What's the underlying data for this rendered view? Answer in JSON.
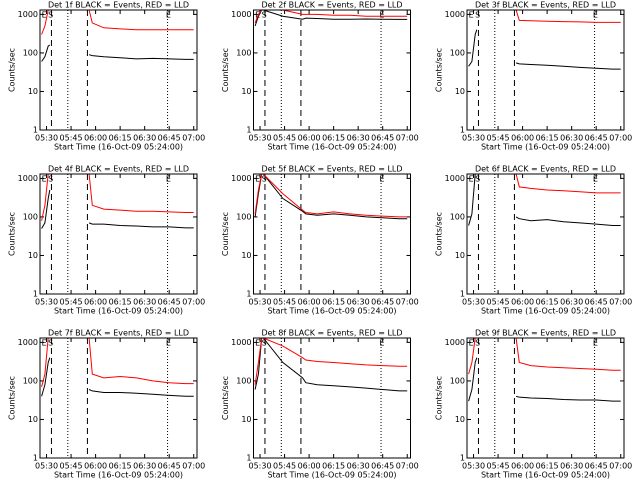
{
  "chart_data": [
    {
      "type": "line",
      "title": "Det 1f BLACK = Events, RED = LLD",
      "xlabel": "Start Time (16-Oct-09 05:24:00)",
      "ylabel": "Counts/sec",
      "log_y": true,
      "xlim": [
        "05:26",
        "07:02"
      ],
      "ylim": [
        1,
        1300
      ],
      "yticks": [
        1,
        10,
        100,
        1000
      ],
      "xticks": [
        "05:30",
        "05:45",
        "06:00",
        "06:15",
        "06:30",
        "06:45",
        "07:00"
      ],
      "markers": [
        {
          "x": "05:33",
          "style": "dashed"
        },
        {
          "x": "05:43",
          "style": "dotted"
        },
        {
          "x": "05:55",
          "style": "dashed"
        },
        {
          "x": "06:44",
          "style": "dotted"
        }
      ],
      "annotations": [
        {
          "text": "E",
          "x": "05:27"
        },
        {
          "text": "S",
          "x": "05:31"
        },
        {
          "text": "E",
          "x": "06:43"
        }
      ],
      "x": [
        "05:27",
        "05:29",
        "05:31",
        "05:32",
        "05:44",
        "05:56",
        "05:58",
        "06:05",
        "06:15",
        "06:25",
        "06:35",
        "06:45",
        "06:55",
        "07:00"
      ],
      "series": [
        {
          "name": "BLACK",
          "color": "#000000",
          "values": [
            60,
            80,
            150,
            160,
            null,
            90,
            85,
            80,
            75,
            70,
            72,
            70,
            68,
            68
          ]
        },
        {
          "name": "RED",
          "color": "#ff0000",
          "values": [
            300,
            500,
            1300,
            1300,
            null,
            1300,
            600,
            450,
            420,
            400,
            400,
            400,
            400,
            400
          ]
        }
      ]
    },
    {
      "type": "line",
      "title": "Det 2f BLACK = Events, RED = LLD",
      "xlabel": "Start Time (16-Oct-09 05:24:00)",
      "ylabel": "Counts/sec",
      "log_y": true,
      "xlim": [
        "05:26",
        "07:02"
      ],
      "ylim": [
        1,
        1300
      ],
      "yticks": [
        1,
        10,
        100,
        1000
      ],
      "xticks": [
        "05:30",
        "05:45",
        "06:00",
        "06:15",
        "06:30",
        "06:45",
        "07:00"
      ],
      "markers": [
        {
          "x": "05:33",
          "style": "dashed"
        },
        {
          "x": "05:43",
          "style": "dotted"
        },
        {
          "x": "05:55",
          "style": "dashed"
        },
        {
          "x": "06:44",
          "style": "dotted"
        }
      ],
      "annotations": [
        {
          "text": "E",
          "x": "05:27"
        },
        {
          "text": "S",
          "x": "05:31"
        },
        {
          "text": "E",
          "x": "06:43"
        }
      ],
      "x": [
        "05:27",
        "05:29",
        "05:31",
        "05:32",
        "05:44",
        "05:56",
        "05:58",
        "06:05",
        "06:15",
        "06:25",
        "06:35",
        "06:45",
        "06:55",
        "07:00"
      ],
      "series": [
        {
          "name": "BLACK",
          "color": "#000000",
          "values": [
            500,
            900,
            1300,
            1300,
            900,
            750,
            800,
            780,
            750,
            750,
            760,
            750,
            740,
            740
          ]
        },
        {
          "name": "RED",
          "color": "#ff0000",
          "values": [
            600,
            1000,
            1300,
            1300,
            1300,
            1000,
            1000,
            1000,
            950,
            950,
            900,
            900,
            900,
            900
          ]
        }
      ]
    },
    {
      "type": "line",
      "title": "Det 3f BLACK = Events, RED = LLD",
      "xlabel": "Start Time (16-Oct-09 05:24:00)",
      "ylabel": "Counts/sec",
      "log_y": true,
      "xlim": [
        "05:26",
        "07:02"
      ],
      "ylim": [
        1,
        1300
      ],
      "yticks": [
        1,
        10,
        100,
        1000
      ],
      "xticks": [
        "05:30",
        "05:45",
        "06:00",
        "06:15",
        "06:30",
        "06:45",
        "07:00"
      ],
      "markers": [
        {
          "x": "05:33",
          "style": "dashed"
        },
        {
          "x": "05:43",
          "style": "dotted"
        },
        {
          "x": "05:55",
          "style": "dashed"
        },
        {
          "x": "06:44",
          "style": "dotted"
        }
      ],
      "annotations": [
        {
          "text": "E",
          "x": "05:27"
        },
        {
          "text": "S",
          "x": "05:31"
        },
        {
          "text": "E",
          "x": "06:43"
        }
      ],
      "x": [
        "05:27",
        "05:29",
        "05:31",
        "05:32",
        "05:44",
        "05:56",
        "05:58",
        "06:05",
        "06:15",
        "06:25",
        "06:35",
        "06:45",
        "06:55",
        "07:00"
      ],
      "series": [
        {
          "name": "BLACK",
          "color": "#000000",
          "values": [
            45,
            60,
            300,
            400,
            null,
            55,
            52,
            50,
            48,
            45,
            42,
            40,
            38,
            38
          ]
        },
        {
          "name": "RED",
          "color": "#ff0000",
          "values": [
            1300,
            1300,
            1300,
            1300,
            null,
            1300,
            700,
            680,
            660,
            650,
            640,
            620,
            620,
            620
          ]
        }
      ]
    },
    {
      "type": "line",
      "title": "Det 4f BLACK = Events, RED = LLD",
      "xlabel": "Start Time (16-Oct-09 05:24:00)",
      "ylabel": "Counts/sec",
      "log_y": true,
      "xlim": [
        "05:26",
        "07:02"
      ],
      "ylim": [
        1,
        1300
      ],
      "yticks": [
        1,
        10,
        100,
        1000
      ],
      "xticks": [
        "05:30",
        "05:45",
        "06:00",
        "06:15",
        "06:30",
        "06:45",
        "07:00"
      ],
      "markers": [
        {
          "x": "05:33",
          "style": "dashed"
        },
        {
          "x": "05:43",
          "style": "dotted"
        },
        {
          "x": "05:55",
          "style": "dashed"
        },
        {
          "x": "06:44",
          "style": "dotted"
        }
      ],
      "annotations": [
        {
          "text": "E",
          "x": "05:27"
        },
        {
          "text": "S",
          "x": "05:31"
        },
        {
          "text": "E",
          "x": "06:43"
        }
      ],
      "x": [
        "05:27",
        "05:29",
        "05:31",
        "05:32",
        "05:44",
        "05:56",
        "05:58",
        "06:05",
        "06:15",
        "06:25",
        "06:35",
        "06:45",
        "06:55",
        "07:00"
      ],
      "series": [
        {
          "name": "BLACK",
          "color": "#000000",
          "values": [
            50,
            70,
            300,
            500,
            null,
            70,
            65,
            65,
            60,
            58,
            55,
            55,
            52,
            52
          ]
        },
        {
          "name": "RED",
          "color": "#ff0000",
          "values": [
            80,
            200,
            1300,
            1300,
            null,
            1300,
            200,
            160,
            150,
            140,
            140,
            135,
            130,
            130
          ]
        }
      ]
    },
    {
      "type": "line",
      "title": "Det 5f BLACK = Events, RED = LLD",
      "xlabel": "Start Time (16-Oct-09 05:24:00)",
      "ylabel": "Counts/sec",
      "log_y": true,
      "xlim": [
        "05:26",
        "07:02"
      ],
      "ylim": [
        1,
        1300
      ],
      "yticks": [
        1,
        10,
        100,
        1000
      ],
      "xticks": [
        "05:30",
        "05:45",
        "06:00",
        "06:15",
        "06:30",
        "06:45",
        "07:00"
      ],
      "markers": [
        {
          "x": "05:33",
          "style": "dashed"
        },
        {
          "x": "05:43",
          "style": "dotted"
        },
        {
          "x": "05:55",
          "style": "dashed"
        },
        {
          "x": "06:44",
          "style": "dotted"
        }
      ],
      "annotations": [
        {
          "text": "E",
          "x": "05:27"
        },
        {
          "text": "S",
          "x": "05:31"
        },
        {
          "text": "E",
          "x": "06:43"
        }
      ],
      "x": [
        "05:27",
        "05:29",
        "05:31",
        "05:32",
        "05:44",
        "05:56",
        "05:58",
        "06:05",
        "06:15",
        "06:25",
        "06:35",
        "06:45",
        "06:55",
        "07:00"
      ],
      "series": [
        {
          "name": "BLACK",
          "color": "#000000",
          "values": [
            100,
            400,
            1300,
            1300,
            300,
            140,
            120,
            110,
            120,
            110,
            100,
            95,
            90,
            90
          ]
        },
        {
          "name": "RED",
          "color": "#ff0000",
          "values": [
            120,
            500,
            1300,
            1300,
            400,
            150,
            130,
            120,
            135,
            120,
            110,
            105,
            100,
            100
          ]
        }
      ]
    },
    {
      "type": "line",
      "title": "Det 6f BLACK = Events, RED = LLD",
      "xlabel": "Start Time (16-Oct-09 05:24:00)",
      "ylabel": "Counts/sec",
      "log_y": true,
      "xlim": [
        "05:26",
        "07:02"
      ],
      "ylim": [
        1,
        1300
      ],
      "yticks": [
        1,
        10,
        100,
        1000
      ],
      "xticks": [
        "05:30",
        "05:45",
        "06:00",
        "06:15",
        "06:30",
        "06:45",
        "07:00"
      ],
      "markers": [
        {
          "x": "05:33",
          "style": "dashed"
        },
        {
          "x": "05:43",
          "style": "dotted"
        },
        {
          "x": "05:55",
          "style": "dashed"
        },
        {
          "x": "06:44",
          "style": "dotted"
        }
      ],
      "annotations": [
        {
          "text": "E",
          "x": "05:27"
        },
        {
          "text": "S",
          "x": "05:31"
        },
        {
          "text": "E",
          "x": "06:43"
        }
      ],
      "x": [
        "05:27",
        "05:29",
        "05:31",
        "05:32",
        "05:44",
        "05:56",
        "05:58",
        "06:05",
        "06:15",
        "06:25",
        "06:35",
        "06:45",
        "06:55",
        "07:00"
      ],
      "series": [
        {
          "name": "BLACK",
          "color": "#000000",
          "values": [
            60,
            120,
            1300,
            1300,
            null,
            100,
            90,
            80,
            85,
            75,
            70,
            65,
            60,
            60
          ]
        },
        {
          "name": "RED",
          "color": "#ff0000",
          "values": [
            1300,
            1300,
            1300,
            1300,
            null,
            1300,
            600,
            550,
            500,
            480,
            450,
            420,
            420,
            420
          ]
        }
      ]
    },
    {
      "type": "line",
      "title": "Det 7f BLACK = Events, RED = LLD",
      "xlabel": "Start Time (16-Oct-09 05:24:00)",
      "ylabel": "Counts/sec",
      "log_y": true,
      "xlim": [
        "05:26",
        "07:02"
      ],
      "ylim": [
        1,
        1300
      ],
      "yticks": [
        1,
        10,
        100,
        1000
      ],
      "xticks": [
        "05:30",
        "05:45",
        "06:00",
        "06:15",
        "06:30",
        "06:45",
        "07:00"
      ],
      "markers": [
        {
          "x": "05:33",
          "style": "dashed"
        },
        {
          "x": "05:43",
          "style": "dotted"
        },
        {
          "x": "05:55",
          "style": "dashed"
        },
        {
          "x": "06:44",
          "style": "dotted"
        }
      ],
      "annotations": [
        {
          "text": "E",
          "x": "05:27"
        },
        {
          "text": "S",
          "x": "05:31"
        },
        {
          "text": "E",
          "x": "06:43"
        }
      ],
      "x": [
        "05:27",
        "05:29",
        "05:31",
        "05:32",
        "05:44",
        "05:56",
        "05:58",
        "06:05",
        "06:15",
        "06:25",
        "06:35",
        "06:45",
        "06:55",
        "07:00"
      ],
      "series": [
        {
          "name": "BLACK",
          "color": "#000000",
          "values": [
            40,
            80,
            300,
            400,
            null,
            60,
            55,
            50,
            50,
            48,
            45,
            42,
            40,
            40
          ]
        },
        {
          "name": "RED",
          "color": "#ff0000",
          "values": [
            70,
            150,
            1300,
            1300,
            null,
            1300,
            150,
            120,
            130,
            120,
            100,
            90,
            85,
            85
          ]
        }
      ]
    },
    {
      "type": "line",
      "title": "Det 8f BLACK = Events, RED = LLD",
      "xlabel": "Start Time (16-Oct-09 05:24:00)",
      "ylabel": "Counts/sec",
      "log_y": true,
      "xlim": [
        "05:26",
        "07:02"
      ],
      "ylim": [
        1,
        1300
      ],
      "yticks": [
        1,
        10,
        100,
        1000
      ],
      "xticks": [
        "05:30",
        "05:45",
        "06:00",
        "06:15",
        "06:30",
        "06:45",
        "07:00"
      ],
      "markers": [
        {
          "x": "05:33",
          "style": "dashed"
        },
        {
          "x": "05:43",
          "style": "dotted"
        },
        {
          "x": "05:55",
          "style": "dashed"
        },
        {
          "x": "06:44",
          "style": "dotted"
        }
      ],
      "annotations": [
        {
          "text": "E",
          "x": "05:27"
        },
        {
          "text": "S",
          "x": "05:31"
        },
        {
          "text": "E",
          "x": "06:43"
        }
      ],
      "x": [
        "05:27",
        "05:29",
        "05:31",
        "05:32",
        "05:44",
        "05:56",
        "05:58",
        "06:05",
        "06:15",
        "06:25",
        "06:35",
        "06:45",
        "06:55",
        "07:00"
      ],
      "series": [
        {
          "name": "BLACK",
          "color": "#000000",
          "values": [
            60,
            150,
            1300,
            1300,
            300,
            120,
            90,
            80,
            75,
            70,
            65,
            60,
            55,
            55
          ]
        },
        {
          "name": "RED",
          "color": "#ff0000",
          "values": [
            80,
            300,
            1300,
            1300,
            800,
            400,
            350,
            320,
            300,
            280,
            260,
            250,
            240,
            240
          ]
        }
      ]
    },
    {
      "type": "line",
      "title": "Det 9f BLACK = Events, RED = LLD",
      "xlabel": "Start Time (16-Oct-09 05:24:00)",
      "ylabel": "Counts/sec",
      "log_y": true,
      "xlim": [
        "05:26",
        "07:02"
      ],
      "ylim": [
        1,
        1300
      ],
      "yticks": [
        1,
        10,
        100,
        1000
      ],
      "xticks": [
        "05:30",
        "05:45",
        "06:00",
        "06:15",
        "06:30",
        "06:45",
        "07:00"
      ],
      "markers": [
        {
          "x": "05:33",
          "style": "dashed"
        },
        {
          "x": "05:43",
          "style": "dotted"
        },
        {
          "x": "05:55",
          "style": "dashed"
        },
        {
          "x": "06:44",
          "style": "dotted"
        }
      ],
      "annotations": [
        {
          "text": "E",
          "x": "05:27"
        },
        {
          "text": "S",
          "x": "05:31"
        },
        {
          "text": "E",
          "x": "06:43"
        }
      ],
      "x": [
        "05:27",
        "05:29",
        "05:31",
        "05:32",
        "05:44",
        "05:56",
        "05:58",
        "06:05",
        "06:15",
        "06:25",
        "06:35",
        "06:45",
        "06:55",
        "07:00"
      ],
      "series": [
        {
          "name": "BLACK",
          "color": "#000000",
          "values": [
            30,
            60,
            300,
            400,
            null,
            40,
            38,
            36,
            35,
            33,
            32,
            32,
            30,
            30
          ]
        },
        {
          "name": "RED",
          "color": "#ff0000",
          "values": [
            150,
            300,
            1300,
            1300,
            null,
            1300,
            300,
            250,
            230,
            220,
            210,
            200,
            190,
            190
          ]
        }
      ]
    }
  ]
}
